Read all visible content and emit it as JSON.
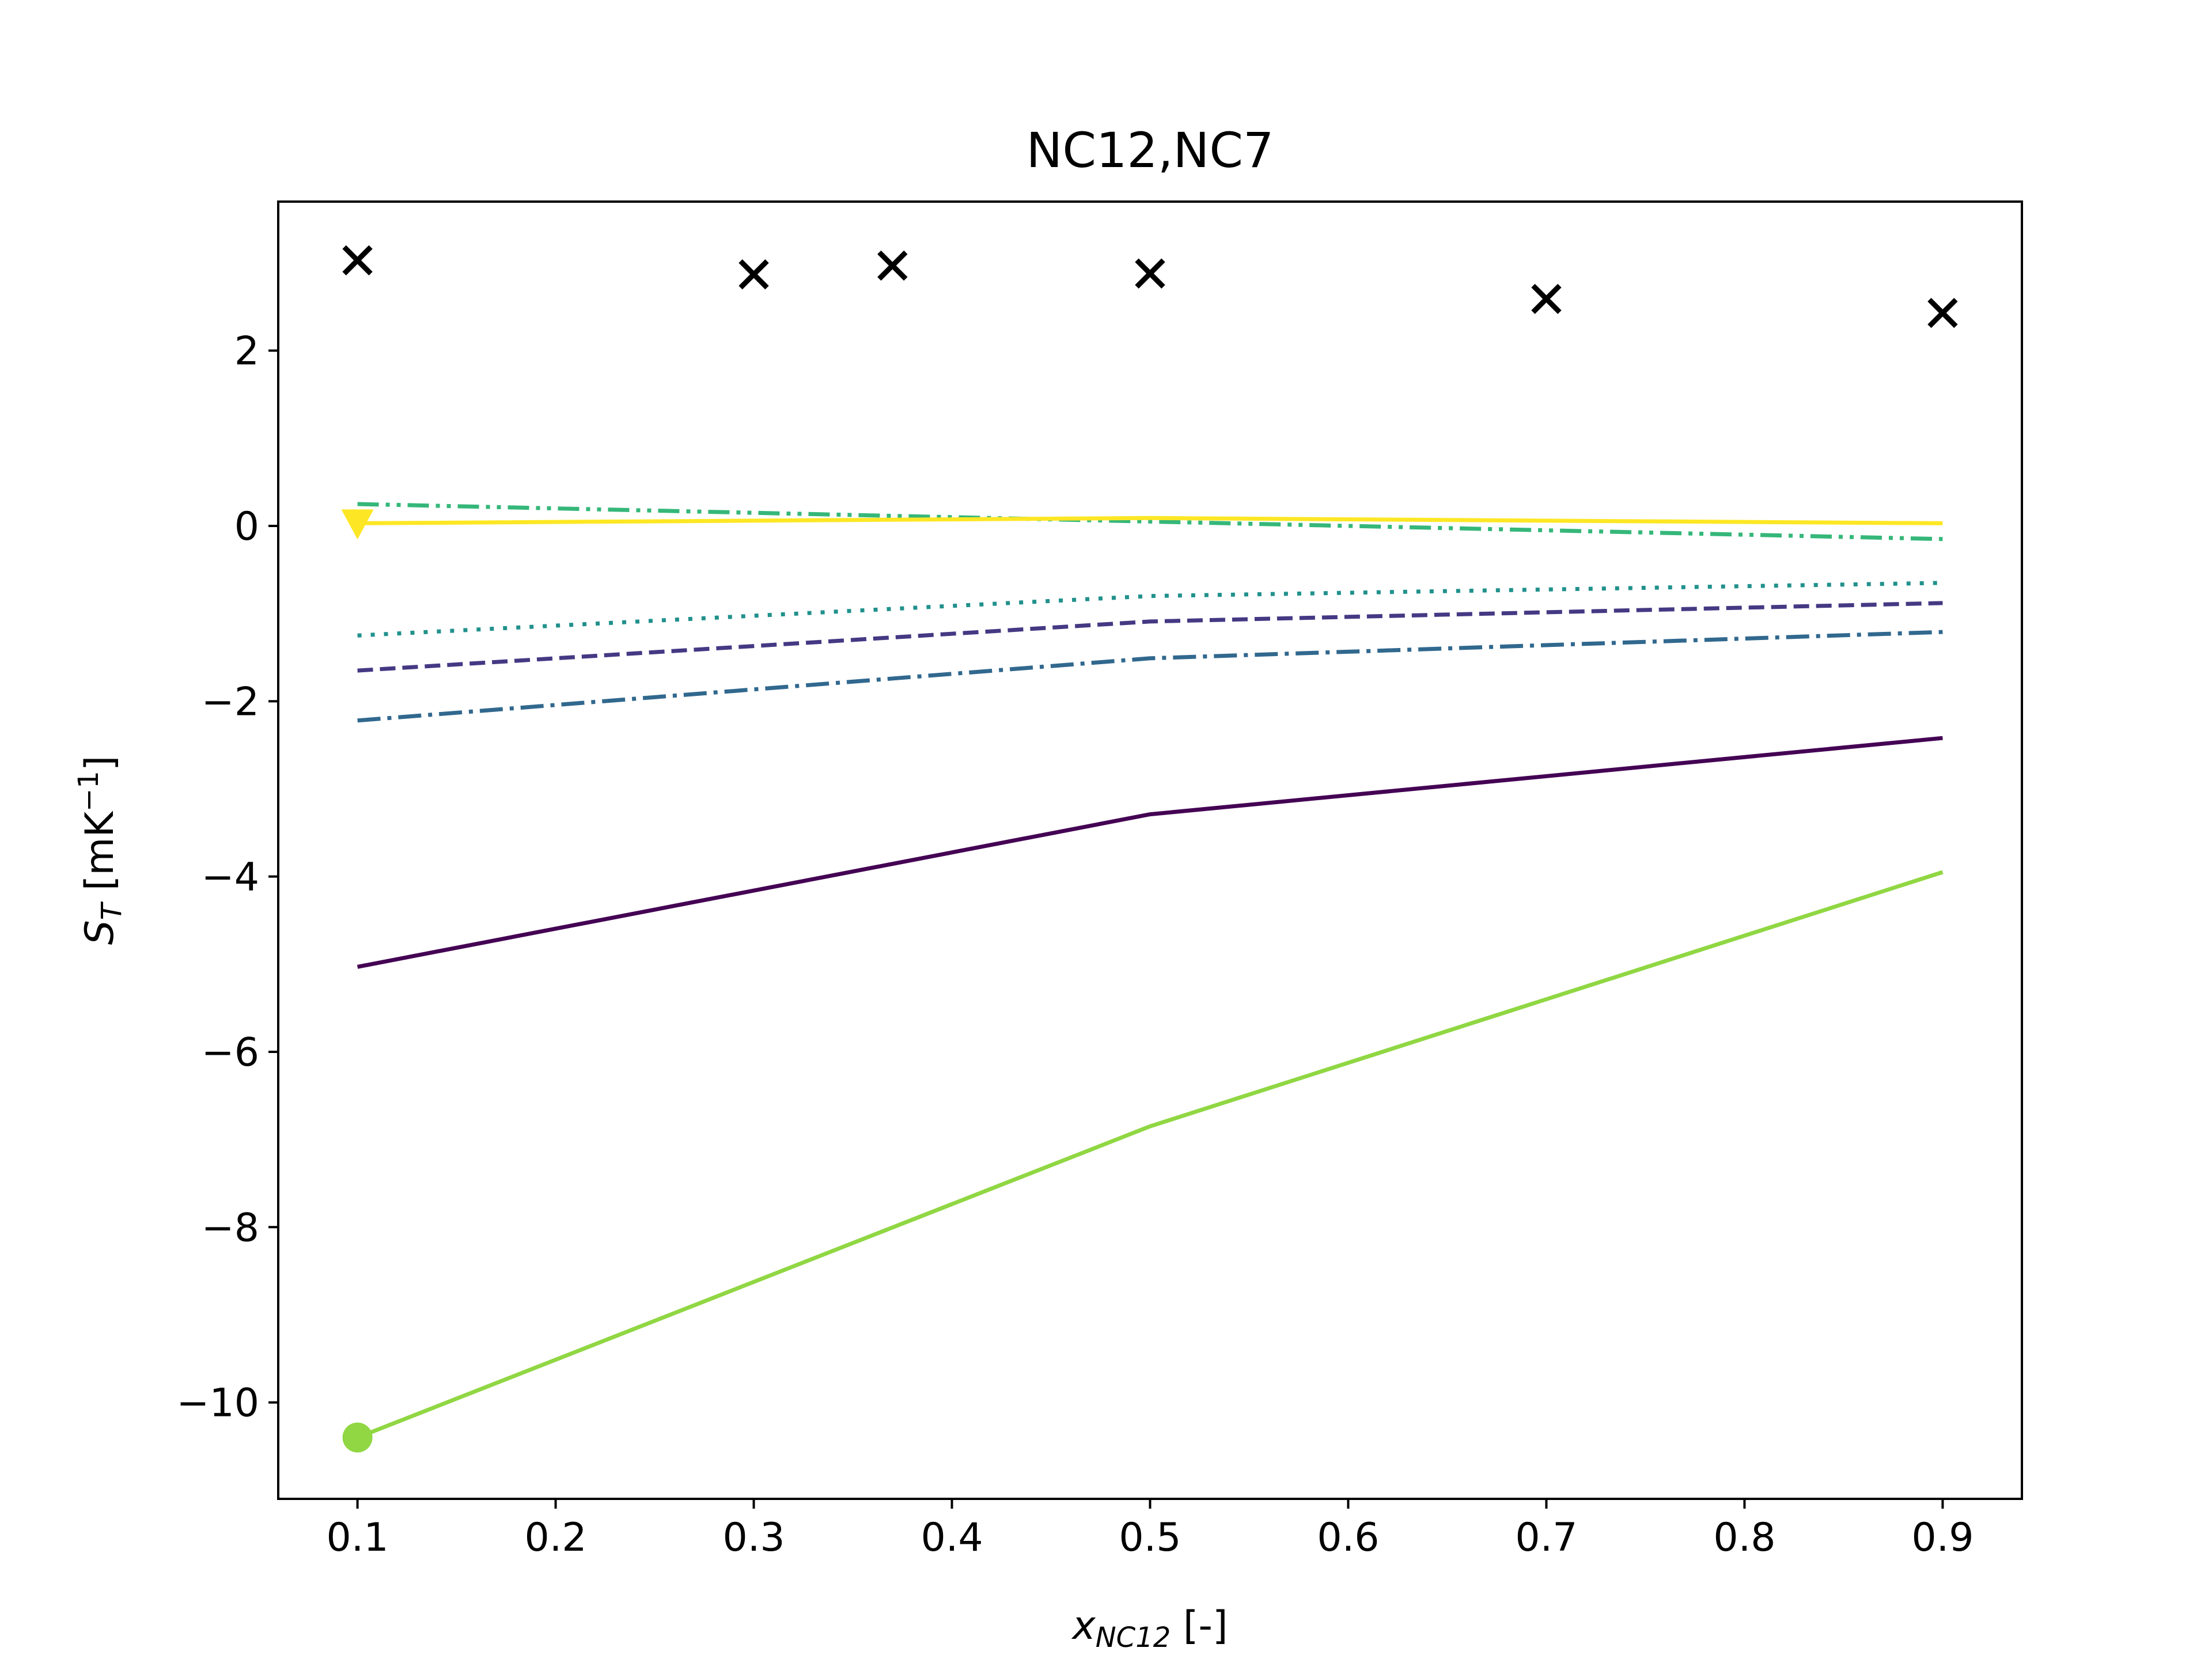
{
  "chart_data": {
    "type": "line",
    "title": "NC12,NC7",
    "xlabel": {
      "main": "x",
      "sub": "NC12",
      "suffix": " [-]"
    },
    "ylabel": {
      "main": "S",
      "sub": "T",
      "suffix": " [mK",
      "sup": "−1",
      "close": "]"
    },
    "xlim": [
      0.06,
      0.94
    ],
    "ylim": [
      -11.1,
      3.7
    ],
    "x_ticks": [
      0.1,
      0.2,
      0.3,
      0.4,
      0.5,
      0.6,
      0.7,
      0.8,
      0.9
    ],
    "x_tick_labels": [
      "0.1",
      "0.2",
      "0.3",
      "0.4",
      "0.5",
      "0.6",
      "0.7",
      "0.8",
      "0.9"
    ],
    "y_ticks": [
      -10,
      -8,
      -6,
      -4,
      -2,
      0,
      2
    ],
    "y_tick_labels": [
      "−10",
      "−8",
      "−6",
      "−4",
      "−2",
      "0",
      "2"
    ],
    "grid": false,
    "series": [
      {
        "color": "#440154",
        "dash": "solid",
        "marker": "none",
        "x": [
          0.1,
          0.5,
          0.9
        ],
        "y": [
          -5.03,
          -3.29,
          -2.42
        ]
      },
      {
        "color": "#443983",
        "dash": "dashed",
        "marker": "none",
        "x": [
          0.1,
          0.5,
          0.9
        ],
        "y": [
          -1.65,
          -1.09,
          -0.88
        ]
      },
      {
        "color": "#31688e",
        "dash": "dashdot",
        "marker": "none",
        "x": [
          0.1,
          0.5,
          0.9
        ],
        "y": [
          -2.22,
          -1.51,
          -1.21
        ]
      },
      {
        "color": "#21918c",
        "dash": "dotted",
        "marker": "none",
        "x": [
          0.1,
          0.5,
          0.9
        ],
        "y": [
          -1.25,
          -0.8,
          -0.65
        ]
      },
      {
        "color": "#35b779",
        "dash": "dashdotdot",
        "marker": "none",
        "x": [
          0.1,
          0.5,
          0.9
        ],
        "y": [
          0.25,
          0.05,
          -0.15
        ]
      },
      {
        "color": "#90d743",
        "dash": "solid",
        "marker": "circle",
        "x": [
          0.1,
          0.5,
          0.9
        ],
        "y": [
          -10.4,
          -6.85,
          -3.95
        ]
      },
      {
        "color": "#fde725",
        "dash": "solid",
        "marker": "triangle-down",
        "x": [
          0.1,
          0.5,
          0.9
        ],
        "y": [
          0.03,
          0.09,
          0.03
        ]
      }
    ],
    "experimental": {
      "color": "#000000",
      "marker": "x",
      "x": [
        0.1,
        0.3,
        0.37,
        0.5,
        0.7,
        0.9
      ],
      "y": [
        3.03,
        2.87,
        2.97,
        2.88,
        2.59,
        2.43
      ]
    }
  }
}
